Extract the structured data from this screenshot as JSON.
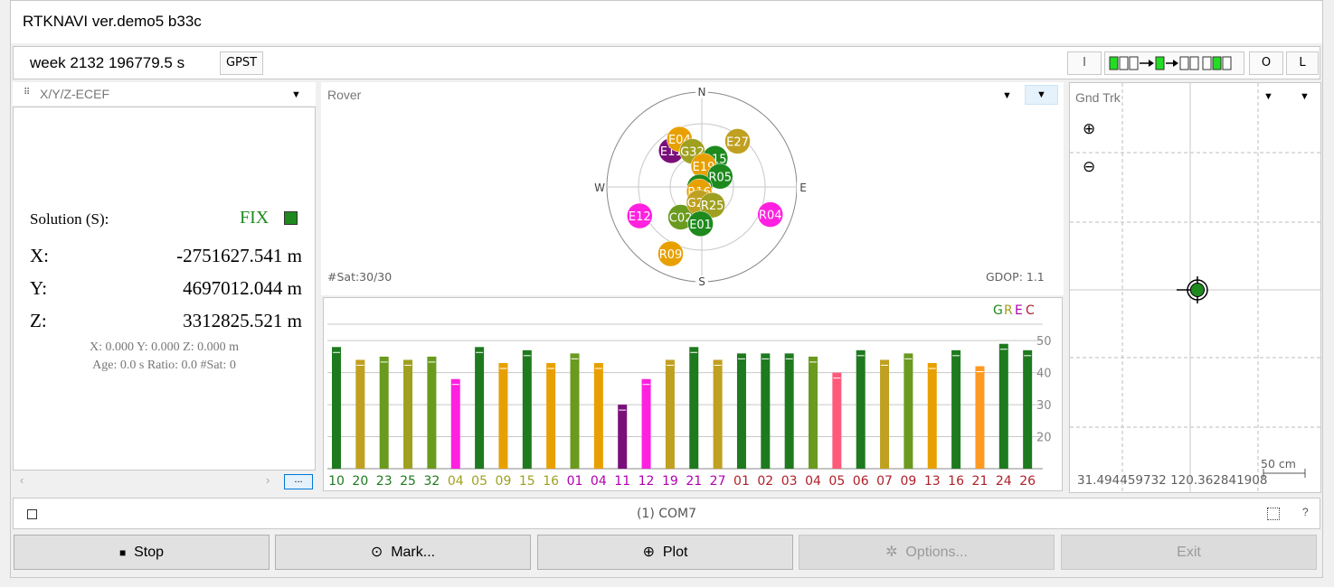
{
  "window": {
    "title": "RTKNAVI ver.demo5 b33c"
  },
  "toolbar": {
    "time": "week 2132 196779.5 s",
    "time_sys": "GPST",
    "btn_i": "I",
    "btn_o": "O",
    "btn_l": "L"
  },
  "left_panel": {
    "selector": "X/Y/Z-ECEF",
    "solution_label": "Solution (S):",
    "solution_status": "FIX",
    "x_label": "X:",
    "x_value": "-2751627.541 m",
    "y_label": "Y:",
    "y_value": "4697012.044 m",
    "z_label": "Z:",
    "z_value": "3312825.521 m",
    "sd_line": "X: 0.000 Y: 0.000 Z: 0.000 m",
    "age_line": "Age: 0.0 s Ratio: 0.0 #Sat: 0",
    "more_button": "..."
  },
  "sky_panel": {
    "selector": "Rover",
    "nsat": "#Sat:30/30",
    "gdop": "GDOP: 1.1",
    "dir_n": "N",
    "dir_e": "E",
    "dir_s": "S",
    "dir_w": "W",
    "satellites": [
      {
        "id": "E11",
        "az": -40,
        "el": 45,
        "color": "#7a0f7a"
      },
      {
        "id": "E04",
        "az": -25,
        "el": 40,
        "color": "#e8a000"
      },
      {
        "id": "G32",
        "az": -15,
        "el": 55,
        "color": "#a0a020"
      },
      {
        "id": "E27",
        "az": 38,
        "el": 35,
        "color": "#c0a020"
      },
      {
        "id": "R15",
        "az": 25,
        "el": 60,
        "color": "#1e8a1e"
      },
      {
        "id": "E19",
        "az": 5,
        "el": 70,
        "color": "#e8a000"
      },
      {
        "id": "R05",
        "az": 60,
        "el": 70,
        "color": "#1e8a1e"
      },
      {
        "id": "G10",
        "az": -90,
        "el": 88,
        "color": "#1e8a1e"
      },
      {
        "id": "R16",
        "az": -150,
        "el": 85,
        "color": "#e8a000"
      },
      {
        "id": "E12",
        "az": -115,
        "el": 25,
        "color": "#ff20e0"
      },
      {
        "id": "C02",
        "az": -145,
        "el": 55,
        "color": "#6a9a1e"
      },
      {
        "id": "G20",
        "az": -170,
        "el": 75,
        "color": "#c0a020"
      },
      {
        "id": "R25",
        "az": 150,
        "el": 70,
        "color": "#a0a020"
      },
      {
        "id": "R04",
        "az": 112,
        "el": 20,
        "color": "#ff20e0"
      },
      {
        "id": "E01",
        "az": -178,
        "el": 55,
        "color": "#1e8a1e"
      },
      {
        "id": "R09",
        "az": -155,
        "el": 20,
        "color": "#e8a000"
      }
    ],
    "legend": {
      "g": "G",
      "r": "R",
      "e": "E",
      "c": "C"
    },
    "snr_ticks": [
      "50",
      "40",
      "30",
      "20"
    ],
    "bars": [
      {
        "prn": "10",
        "snr": 48,
        "color": "#1e7a1e",
        "lc": "#1e7a1e"
      },
      {
        "prn": "20",
        "snr": 44,
        "color": "#c0a020",
        "lc": "#1e7a1e"
      },
      {
        "prn": "23",
        "snr": 45,
        "color": "#6a9a1e",
        "lc": "#1e7a1e"
      },
      {
        "prn": "25",
        "snr": 44,
        "color": "#a0a020",
        "lc": "#1e7a1e"
      },
      {
        "prn": "32",
        "snr": 45,
        "color": "#6a9a1e",
        "lc": "#1e7a1e"
      },
      {
        "prn": "04",
        "snr": 38,
        "color": "#ff20e0",
        "lc": "#a0a020"
      },
      {
        "prn": "05",
        "snr": 48,
        "color": "#1e7a1e",
        "lc": "#a0a020"
      },
      {
        "prn": "09",
        "snr": 43,
        "color": "#e8a000",
        "lc": "#a0a020"
      },
      {
        "prn": "15",
        "snr": 47,
        "color": "#1e7a1e",
        "lc": "#a0a020"
      },
      {
        "prn": "16",
        "snr": 43,
        "color": "#e8a000",
        "lc": "#a0a020"
      },
      {
        "prn": "01",
        "snr": 46,
        "color": "#6a9a1e",
        "lc": "#b000b0"
      },
      {
        "prn": "04",
        "snr": 43,
        "color": "#e8a000",
        "lc": "#b000b0"
      },
      {
        "prn": "11",
        "snr": 30,
        "color": "#7a0f7a",
        "lc": "#b000b0"
      },
      {
        "prn": "12",
        "snr": 38,
        "color": "#ff20e0",
        "lc": "#b000b0"
      },
      {
        "prn": "19",
        "snr": 44,
        "color": "#c0a020",
        "lc": "#b000b0"
      },
      {
        "prn": "21",
        "snr": 48,
        "color": "#1e7a1e",
        "lc": "#b000b0"
      },
      {
        "prn": "27",
        "snr": 44,
        "color": "#c0a020",
        "lc": "#b000b0"
      },
      {
        "prn": "01",
        "snr": 46,
        "color": "#1e7a1e",
        "lc": "#b0202a"
      },
      {
        "prn": "02",
        "snr": 46,
        "color": "#1e7a1e",
        "lc": "#b0202a"
      },
      {
        "prn": "03",
        "snr": 46,
        "color": "#1e7a1e",
        "lc": "#b0202a"
      },
      {
        "prn": "04",
        "snr": 45,
        "color": "#6a9a1e",
        "lc": "#b0202a"
      },
      {
        "prn": "05",
        "snr": 40,
        "color": "#ff5a7a",
        "lc": "#b0202a"
      },
      {
        "prn": "06",
        "snr": 47,
        "color": "#1e7a1e",
        "lc": "#b0202a"
      },
      {
        "prn": "07",
        "snr": 44,
        "color": "#c0a020",
        "lc": "#b0202a"
      },
      {
        "prn": "09",
        "snr": 46,
        "color": "#6a9a1e",
        "lc": "#b0202a"
      },
      {
        "prn": "13",
        "snr": 43,
        "color": "#e8a000",
        "lc": "#b0202a"
      },
      {
        "prn": "16",
        "snr": 47,
        "color": "#1e7a1e",
        "lc": "#b0202a"
      },
      {
        "prn": "21",
        "snr": 42,
        "color": "#ff9a20",
        "lc": "#b0202a"
      },
      {
        "prn": "24",
        "snr": 49,
        "color": "#1e7a1e",
        "lc": "#b0202a"
      },
      {
        "prn": "26",
        "snr": 47,
        "color": "#1e7a1e",
        "lc": "#b0202a"
      }
    ]
  },
  "track_panel": {
    "selector": "Gnd Trk",
    "coords": "31.494459732 120.362841908",
    "scale": "50 cm"
  },
  "status_bar": {
    "text": "(1) COM7",
    "help": "?"
  },
  "buttons": {
    "stop": "Stop",
    "mark": "Mark...",
    "plot": "Plot",
    "options": "Options...",
    "exit": "Exit"
  }
}
